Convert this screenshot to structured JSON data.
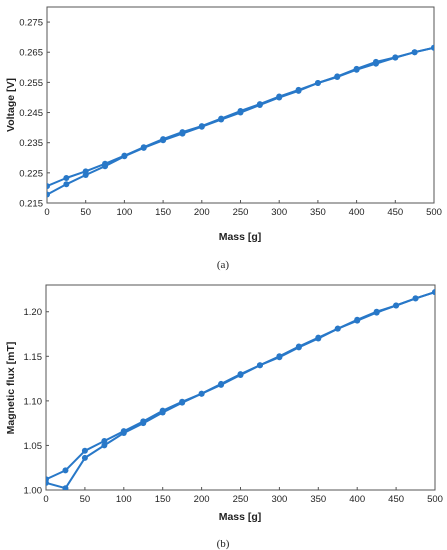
{
  "chart_data": [
    {
      "type": "line",
      "caption": "(a)",
      "xlabel": "Mass [g]",
      "ylabel": "Voltage [V]",
      "xlim": [
        0,
        500
      ],
      "ylim": [
        0.215,
        0.28
      ],
      "xticks": [
        "0",
        "50",
        "100",
        "150",
        "200",
        "250",
        "300",
        "350",
        "400",
        "450",
        "500"
      ],
      "yticks": [
        "0.215",
        "0.225",
        "0.235",
        "0.245",
        "0.255",
        "0.265",
        "0.275"
      ],
      "grid": false,
      "color": "#2878c8",
      "series": [
        {
          "x": [
            0,
            25,
            50,
            75,
            100,
            125,
            150,
            175,
            200,
            225,
            250,
            275,
            300,
            325,
            350,
            375,
            400,
            425,
            450,
            475,
            500
          ],
          "y": [
            0.2178,
            0.2212,
            0.2243,
            0.2272,
            0.2305,
            0.2333,
            0.2358,
            0.238,
            0.2403,
            0.2427,
            0.245,
            0.2475,
            0.25,
            0.2522,
            0.2548,
            0.2568,
            0.2592,
            0.2612,
            0.2632,
            0.265,
            0.2665
          ]
        },
        {
          "x": [
            500,
            475,
            450,
            425,
            400,
            375,
            350,
            325,
            300,
            275,
            250,
            225,
            200,
            175,
            150,
            125,
            100,
            75,
            50,
            25,
            0
          ],
          "y": [
            0.2665,
            0.265,
            0.2633,
            0.2618,
            0.2595,
            0.257,
            0.2548,
            0.2525,
            0.2503,
            0.2478,
            0.2455,
            0.243,
            0.2405,
            0.2385,
            0.2362,
            0.2335,
            0.2307,
            0.228,
            0.2255,
            0.2233,
            0.2206
          ]
        }
      ]
    },
    {
      "type": "line",
      "caption": "(b)",
      "xlabel": "Mass [g]",
      "ylabel": "Magnetic flux [mT]",
      "xlim": [
        0,
        500
      ],
      "ylim": [
        1.0,
        1.23
      ],
      "xticks": [
        "0",
        "50",
        "100",
        "150",
        "200",
        "250",
        "300",
        "350",
        "400",
        "450",
        "500"
      ],
      "yticks": [
        "1.00",
        "1.05",
        "1.10",
        "1.15",
        "1.20"
      ],
      "grid": false,
      "color": "#2878c8",
      "series": [
        {
          "x": [
            0,
            25,
            50,
            75,
            100,
            125,
            150,
            175,
            200,
            225,
            250,
            275,
            300,
            325,
            350,
            375,
            400,
            425,
            450,
            475,
            500
          ],
          "y": [
            1.012,
            1.022,
            1.044,
            1.055,
            1.066,
            1.077,
            1.089,
            1.099,
            1.108,
            1.119,
            1.13,
            1.14,
            1.15,
            1.161,
            1.171,
            1.181,
            1.191,
            1.2,
            1.207,
            1.215,
            1.222
          ]
        },
        {
          "x": [
            500,
            475,
            450,
            425,
            400,
            375,
            350,
            325,
            300,
            275,
            250,
            225,
            200,
            175,
            150,
            125,
            100,
            75,
            50,
            25,
            0
          ],
          "y": [
            1.222,
            1.215,
            1.207,
            1.199,
            1.19,
            1.181,
            1.17,
            1.16,
            1.149,
            1.14,
            1.129,
            1.118,
            1.108,
            1.098,
            1.087,
            1.075,
            1.064,
            1.05,
            1.036,
            1.002,
            1.008
          ]
        }
      ]
    }
  ]
}
